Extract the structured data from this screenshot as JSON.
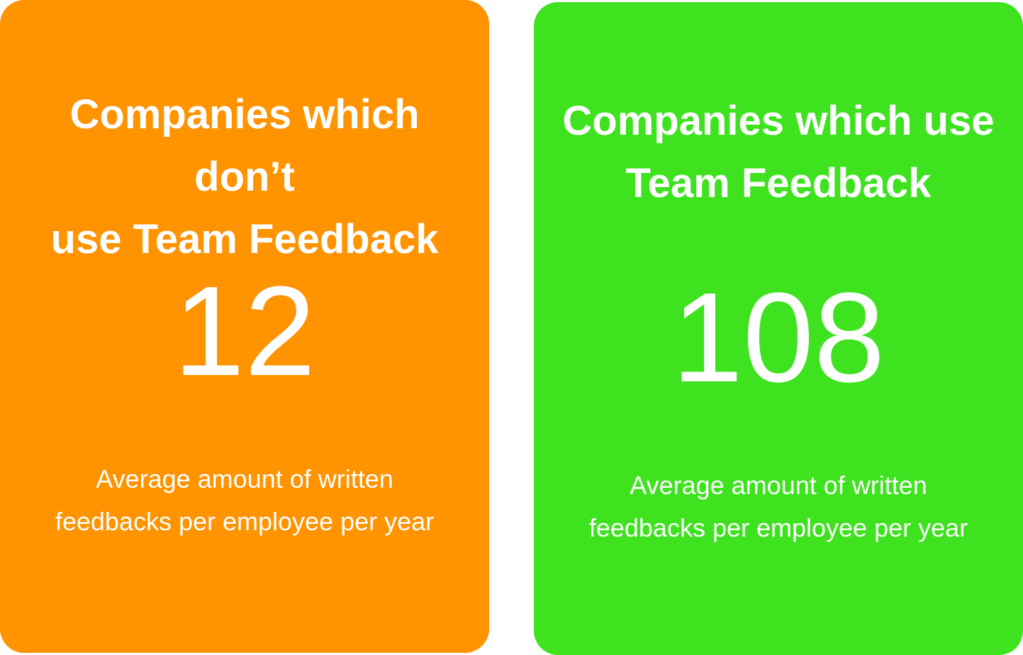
{
  "cards": [
    {
      "title_line1": "Companies which don’t",
      "title_line2": "use Team Feedback",
      "value": "12",
      "caption_line1": "Average amount of written",
      "caption_line2": "feedbacks per employee per year",
      "color": "#ff9300"
    },
    {
      "title_line1": "Companies which use",
      "title_line2": "Team Feedback",
      "value": "108",
      "caption_line1": "Average amount of written",
      "caption_line2": "feedbacks per employee per year",
      "color": "#3ee21f"
    }
  ]
}
